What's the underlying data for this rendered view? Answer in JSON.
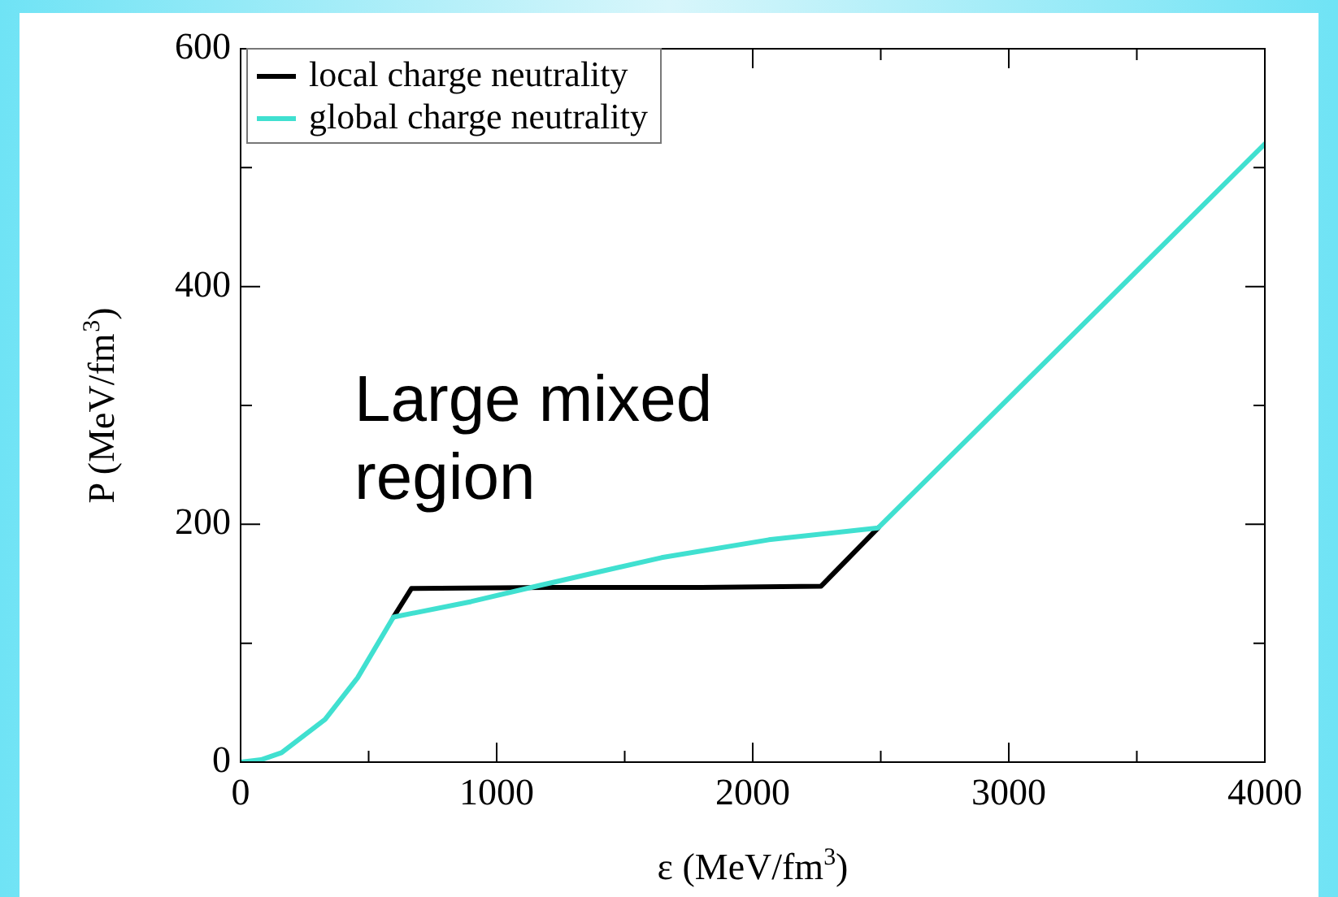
{
  "chart_data": {
    "type": "line",
    "xlabel": "ε (MeV/fm$^{3}$)",
    "ylabel": "P (MeV/fm$^{3}$)",
    "xlim": [
      0,
      4000
    ],
    "xticks": [
      0,
      {
        "value": 500,
        "label": null
      },
      1000,
      {
        "value": 1500,
        "label": null
      },
      2000,
      {
        "value": 2500,
        "label": null
      },
      3000,
      {
        "value": 3500,
        "label": null
      },
      4000
    ],
    "ylim": [
      0,
      600
    ],
    "yticks": [
      0,
      {
        "value": 100,
        "label": null
      },
      200,
      {
        "value": 300,
        "label": null
      },
      400,
      {
        "value": 500,
        "label": null
      },
      600
    ],
    "grid": false,
    "legend": "top left",
    "marker": "none",
    "line_style": "solid",
    "annotations": [
      "Large mixed region"
    ],
    "series": [
      {
        "name": "local charge neutrality",
        "color": "#000000",
        "x": [
          597,
          667,
          1200,
          1800,
          2267,
          2490
        ],
        "values": [
          122,
          146,
          147,
          147,
          148,
          197
        ]
      },
      {
        "name": "global charge neutrality",
        "color": "#40e0d0",
        "x": [
          0,
          80,
          160,
          330,
          457,
          597,
          900,
          1175,
          1644,
          2063,
          2490,
          4000
        ],
        "values": [
          0,
          2,
          8,
          36,
          71,
          122,
          135,
          149,
          172,
          187,
          197,
          520
        ]
      }
    ]
  }
}
